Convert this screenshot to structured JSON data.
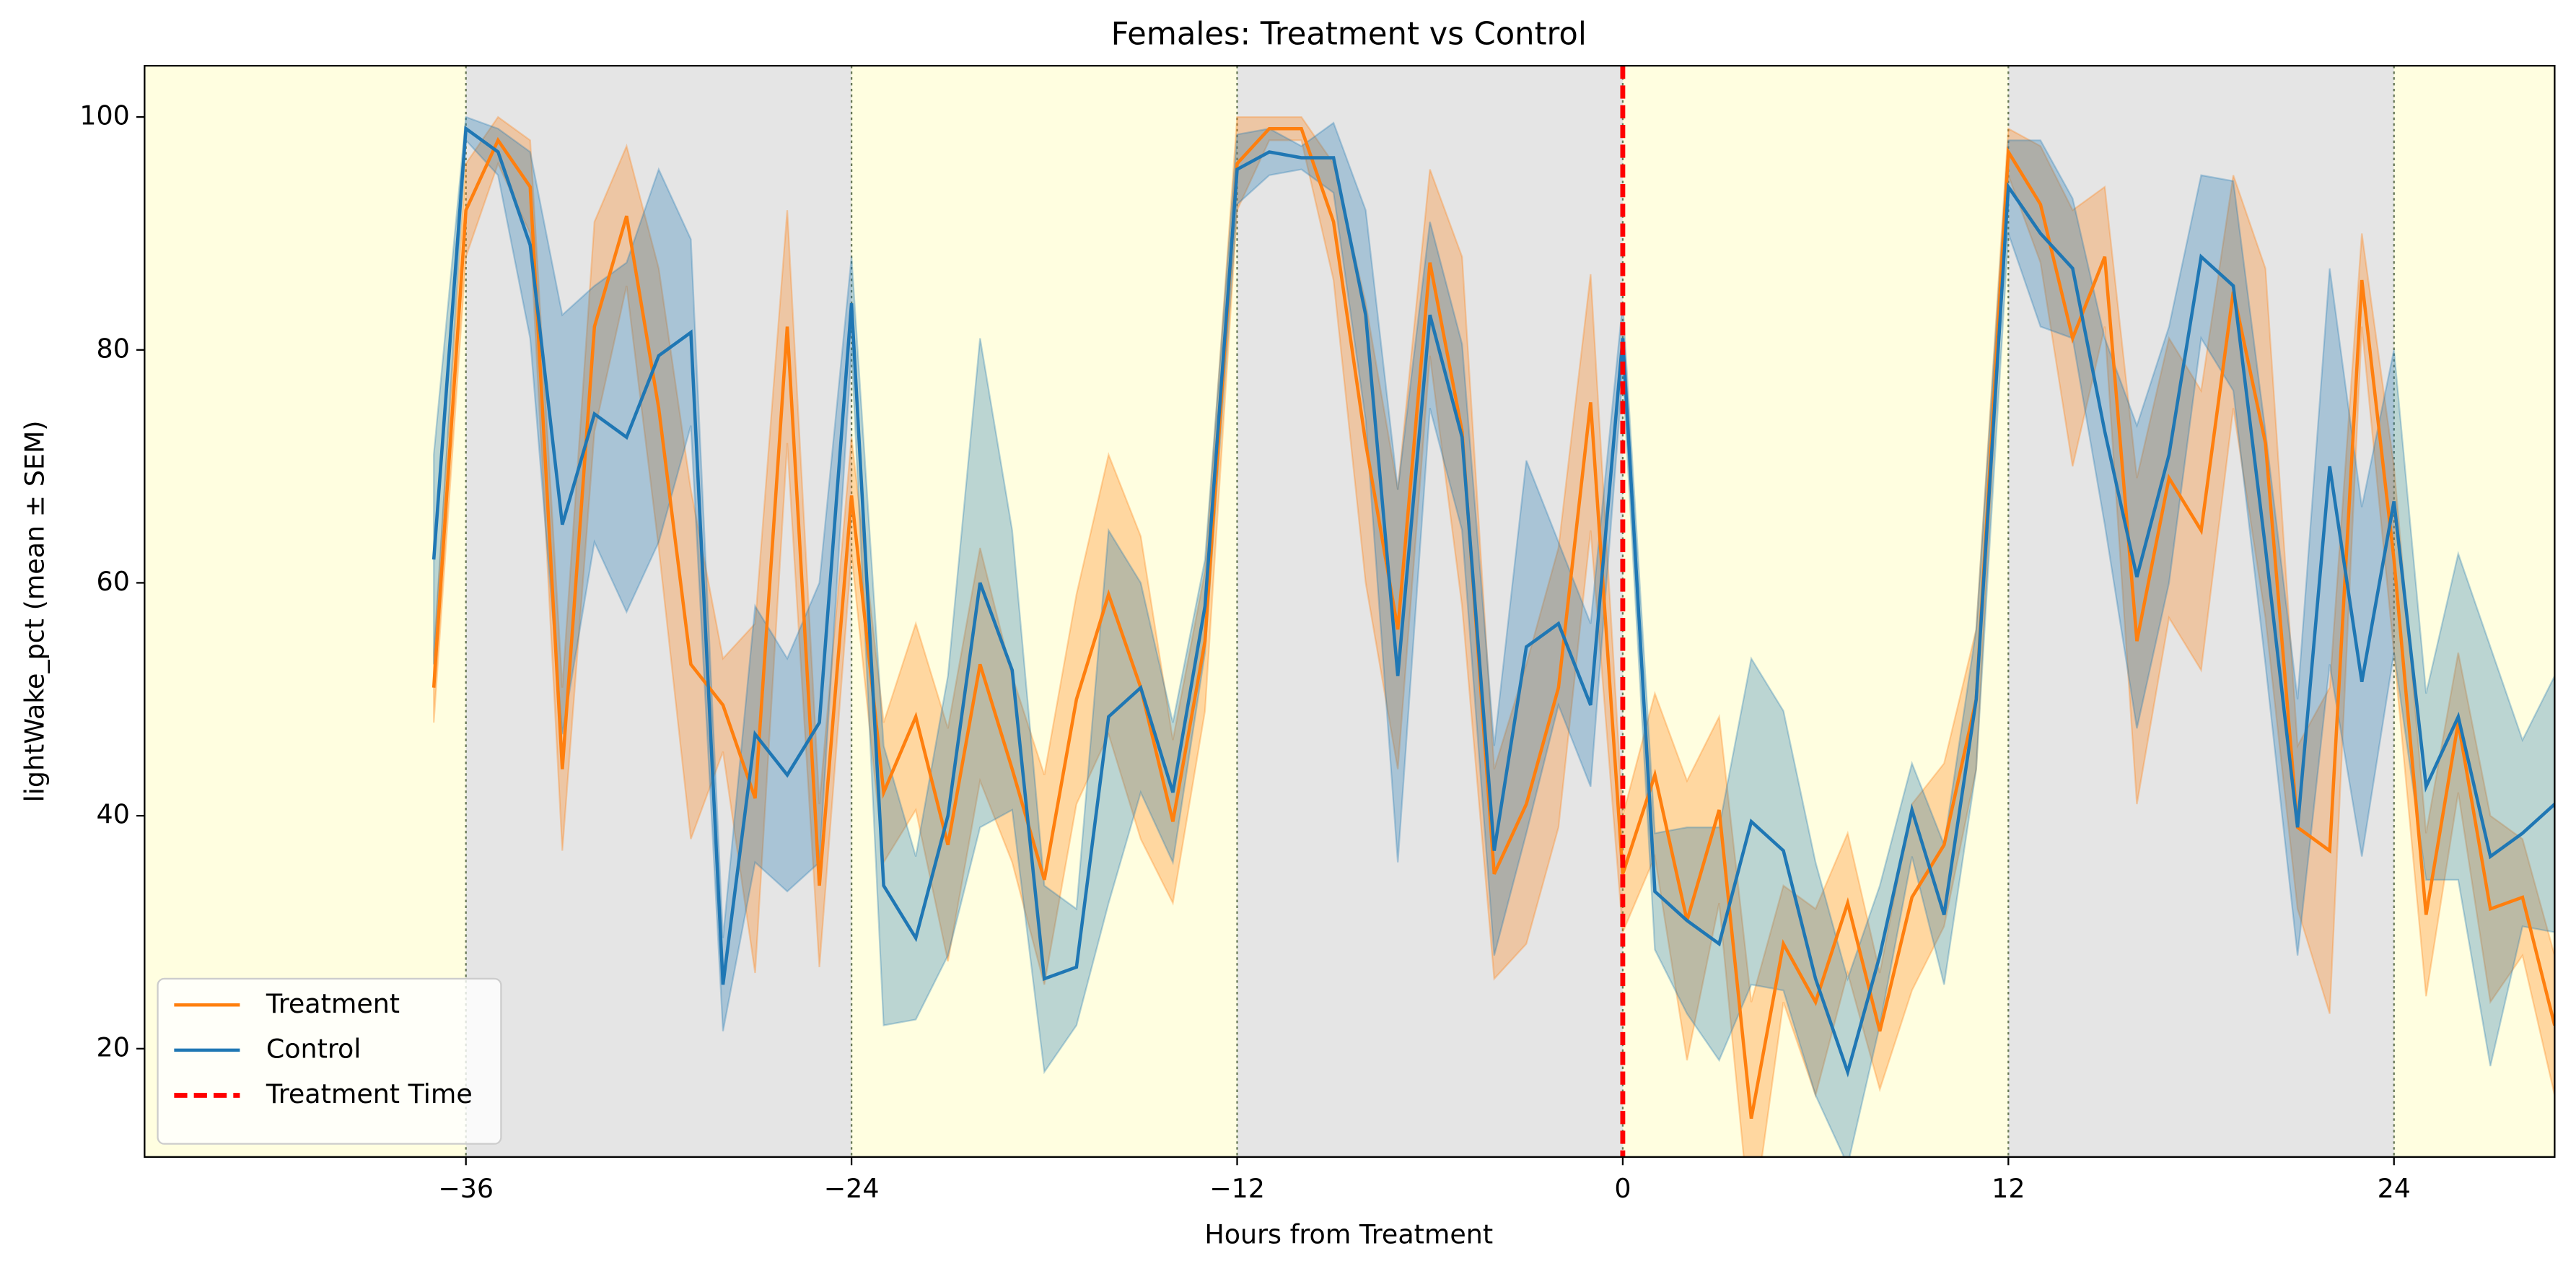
{
  "chart_data": {
    "type": "line",
    "title": "Females: Treatment vs Control",
    "xlabel": "Hours from Treatment",
    "ylabel": "lightWake_pct (mean ± SEM)",
    "x": [
      -37,
      -36,
      -35,
      -34,
      -33,
      -32,
      -31,
      -30,
      -29,
      -28,
      -27,
      -26,
      -25,
      -24,
      -23,
      -22,
      -21,
      -20,
      -19,
      -18,
      -17,
      -16,
      -15,
      -14,
      -13,
      -12,
      -11,
      -10,
      -9,
      -8,
      -7,
      -6,
      -5,
      -4,
      -3,
      -2,
      -1,
      0,
      1,
      2,
      3,
      4,
      5,
      6,
      7,
      8,
      9,
      10,
      11,
      12,
      13,
      14,
      15,
      16,
      17,
      18,
      19,
      20,
      21,
      22,
      23,
      24,
      25,
      26,
      27,
      28,
      29
    ],
    "series": [
      {
        "name": "Treatment",
        "color": "#ff7f0e",
        "values": [
          51,
          92,
          98,
          94,
          44,
          82,
          91.5,
          75,
          53,
          49.5,
          41.5,
          82,
          34,
          67.5,
          42,
          48.5,
          37.5,
          53,
          44,
          34.5,
          50,
          59,
          51,
          39.5,
          55,
          96,
          99,
          99,
          91,
          72,
          56,
          87.5,
          73,
          35,
          41,
          51,
          75.5,
          35,
          43.5,
          31,
          40.5,
          14,
          29,
          24,
          32.5,
          21.5,
          33,
          37.5,
          50,
          97,
          92.5,
          81,
          88,
          55,
          69,
          64.5,
          85,
          72,
          39,
          37,
          86,
          62,
          31.5,
          48,
          32,
          33,
          22
        ],
        "sem": [
          3,
          4,
          2,
          4,
          7,
          9,
          6,
          12,
          15,
          4,
          15,
          10,
          7,
          5,
          6,
          8,
          10,
          10,
          8,
          9,
          9,
          12,
          13,
          7,
          6,
          4,
          1,
          1,
          5,
          12,
          12,
          8,
          15,
          9,
          12,
          12,
          11,
          5,
          7,
          12,
          8,
          10,
          5,
          8,
          6,
          5,
          8,
          7,
          6,
          2,
          5,
          11,
          6,
          14,
          12,
          12,
          10,
          15,
          7,
          14,
          4,
          8,
          7,
          6,
          8,
          5,
          6
        ]
      },
      {
        "name": "Control",
        "color": "#1f77b4",
        "values": [
          62,
          99,
          97,
          89,
          65,
          74.5,
          72.5,
          79.5,
          81.5,
          25.5,
          47,
          43.5,
          48,
          84,
          34,
          29.5,
          40,
          60,
          52.5,
          26,
          27,
          48.5,
          51,
          42,
          58,
          95.5,
          97,
          96.5,
          96.5,
          83,
          52,
          83,
          72.5,
          37,
          54.5,
          56.5,
          49.5,
          81,
          33.5,
          31,
          29,
          39.5,
          37,
          26,
          18,
          28,
          40.5,
          31.5,
          50,
          94,
          90,
          87,
          73,
          60.5,
          71,
          88,
          85.5,
          63,
          39,
          70,
          51.5,
          67,
          42.5,
          48.5,
          36.5,
          38.5,
          41
        ],
        "sem": [
          9,
          1,
          2,
          8,
          18,
          11,
          15,
          16,
          8,
          4,
          11,
          10,
          12,
          4,
          12,
          7,
          12,
          21,
          12,
          8,
          5,
          16,
          9,
          6,
          4,
          3,
          2,
          1,
          3,
          9,
          16,
          8,
          8,
          9,
          16,
          7,
          7,
          3,
          5,
          8,
          10,
          14,
          12,
          10,
          8,
          6,
          4,
          6,
          6,
          4,
          8,
          6,
          8,
          13,
          11,
          7,
          9,
          10,
          11,
          17,
          15,
          13,
          8,
          14,
          18,
          8,
          11
        ]
      }
    ],
    "band_opacity": 0.3,
    "xlim": [
      -46,
      29
    ],
    "ylim": [
      10.7,
      104.4
    ],
    "xticks": [
      {
        "value": -36,
        "label": "−36"
      },
      {
        "value": -24,
        "label": "−24"
      },
      {
        "value": -12,
        "label": "−12"
      },
      0,
      12,
      24
    ],
    "yticks": [
      20,
      40,
      60,
      80,
      100
    ],
    "phase_boundaries": [
      -36,
      -24,
      -12,
      0,
      12,
      24
    ],
    "phase_colors": [
      "#fffee0",
      "#e5e5e5"
    ],
    "boundary_color": "#667755",
    "treatment_time": {
      "name": "Treatment Time",
      "x": 0,
      "color": "#ff0000"
    },
    "legend": "lower left"
  }
}
